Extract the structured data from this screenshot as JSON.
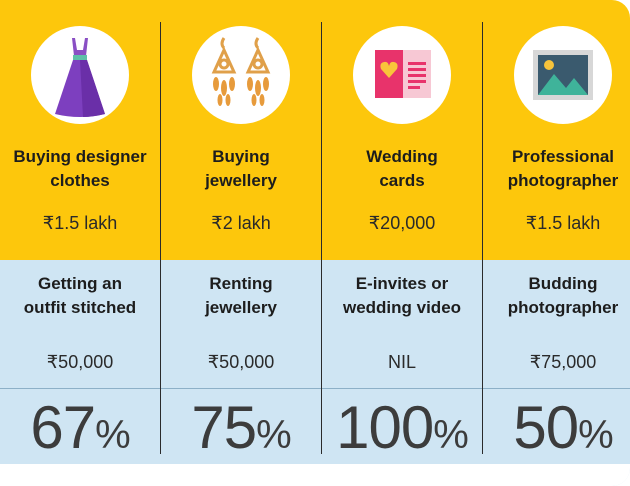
{
  "colors": {
    "top_band": "#fdc70c",
    "bottom_band": "#cfe5f3",
    "icon_circle": "#ffffff"
  },
  "columns": [
    {
      "icon": "dress-icon",
      "title_line1": "Buying designer",
      "title_line2": "clothes",
      "cost": "₹1.5 lakh",
      "alt_line1": "Getting an",
      "alt_line2": "outfit stitched",
      "alt_cost": "₹50,000",
      "saving_value": "67",
      "saving_sign": "%"
    },
    {
      "icon": "earrings-icon",
      "title_line1": "Buying",
      "title_line2": "jewellery",
      "cost": "₹2 lakh",
      "alt_line1": "Renting",
      "alt_line2": "jewellery",
      "alt_cost": "₹50,000",
      "saving_value": "75",
      "saving_sign": "%"
    },
    {
      "icon": "wedding-card-icon",
      "title_line1": "Wedding",
      "title_line2": "cards",
      "cost": "₹20,000",
      "alt_line1": "E-invites or",
      "alt_line2": "wedding video",
      "alt_cost": "NIL",
      "saving_value": "100",
      "saving_sign": "%"
    },
    {
      "icon": "photo-icon",
      "title_line1": "Professional",
      "title_line2": "photographer",
      "cost": "₹1.5 lakh",
      "alt_line1": "Budding",
      "alt_line2": "photographer",
      "alt_cost": "₹75,000",
      "saving_value": "50",
      "saving_sign": "%"
    }
  ]
}
